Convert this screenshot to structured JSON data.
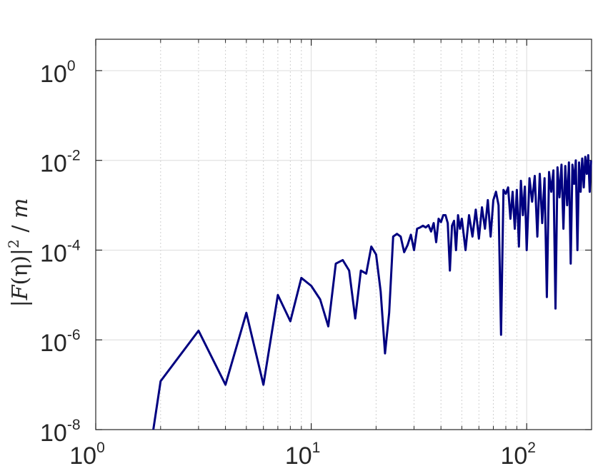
{
  "chart_data": {
    "type": "line",
    "title": "",
    "xlabel": "",
    "ylabel": "|F(η)|² / m",
    "xscale": "log",
    "yscale": "log",
    "xlim": [
      1,
      200
    ],
    "ylim": [
      1e-08,
      5
    ],
    "grid": "on (major solid, x minor dotted)",
    "x_ticks": [
      {
        "base": "10",
        "exp": "0"
      },
      {
        "base": "10",
        "exp": "1"
      },
      {
        "base": "10",
        "exp": "2"
      }
    ],
    "y_ticks": [
      {
        "base": "10",
        "exp": "-8"
      },
      {
        "base": "10",
        "exp": "-6"
      },
      {
        "base": "10",
        "exp": "-4"
      },
      {
        "base": "10",
        "exp": "-2"
      },
      {
        "base": "10",
        "exp": "0"
      }
    ],
    "ylabel_parts": {
      "abs_open": "|",
      "func": "F",
      "paren_open": "(",
      "var": "η",
      "paren_close": ")",
      "abs_close": "|",
      "power": "2",
      "slash": " / ",
      "denom": "m"
    },
    "series": [
      {
        "color": "#000080",
        "x": [
          1.85,
          2,
          3,
          4,
          5,
          6,
          7,
          8,
          9,
          10,
          11,
          12,
          13,
          14,
          15,
          16,
          17,
          18,
          19,
          20,
          21,
          22,
          23,
          24,
          25,
          26,
          27,
          28,
          29,
          30,
          31,
          32,
          33,
          34,
          35,
          36,
          37,
          38,
          39,
          40,
          41,
          42,
          43,
          44,
          45,
          46,
          47,
          48,
          49,
          50,
          52,
          54,
          56,
          58,
          60,
          62,
          64,
          66,
          68,
          70,
          72,
          74,
          76,
          78,
          80,
          82,
          84,
          86,
          88,
          90,
          92,
          94,
          96,
          98,
          100,
          103,
          106,
          109,
          112,
          115,
          118,
          121,
          124,
          127,
          130,
          133,
          136,
          139,
          142,
          145,
          148,
          151,
          154,
          157,
          160,
          163,
          166,
          169,
          172,
          175,
          178,
          181,
          184,
          187,
          190,
          193,
          196,
          199
        ],
        "y": [
          1e-08,
          1.2e-07,
          1.6e-06,
          1e-07,
          4e-06,
          1e-07,
          1e-05,
          2.6e-06,
          2.4e-05,
          1.6e-05,
          8e-06,
          2e-06,
          5e-05,
          6e-05,
          3.5e-05,
          3e-06,
          3.5e-05,
          3e-05,
          0.00012,
          8e-05,
          1.2e-05,
          5e-07,
          4e-06,
          0.0002,
          0.00023,
          0.0002,
          9e-05,
          0.00013,
          0.00022,
          0.0001,
          0.0003,
          0.00032,
          0.00035,
          0.00032,
          0.00036,
          0.00026,
          0.0004,
          0.00015,
          0.0005,
          0.00042,
          0.0006,
          0.0006,
          0.0004,
          3.5e-05,
          0.00035,
          0.00045,
          0.0001,
          0.0006,
          0.0003,
          0.0005,
          0.0001,
          0.0006,
          0.0002,
          0.0008,
          0.00018,
          0.0009,
          0.0003,
          0.0013,
          0.0002,
          0.0013,
          0.002,
          0.001,
          1.3e-06,
          0.0022,
          0.0018,
          0.0025,
          0.0005,
          0.002,
          0.0003,
          0.0022,
          0.00012,
          0.0035,
          0.0006,
          0.0026,
          0.0001,
          0.004,
          0.0012,
          0.0045,
          0.0002,
          0.005,
          0.0004,
          0.004,
          9e-06,
          0.0055,
          0.002,
          0.006,
          5e-06,
          0.007,
          0.0015,
          0.008,
          0.0003,
          0.0075,
          0.001,
          0.009,
          5e-05,
          0.008,
          0.003,
          0.01,
          0.0001,
          0.009,
          0.002,
          0.011,
          0.0025,
          0.012,
          0.005,
          0.013,
          0.002,
          0.01
        ]
      }
    ]
  }
}
